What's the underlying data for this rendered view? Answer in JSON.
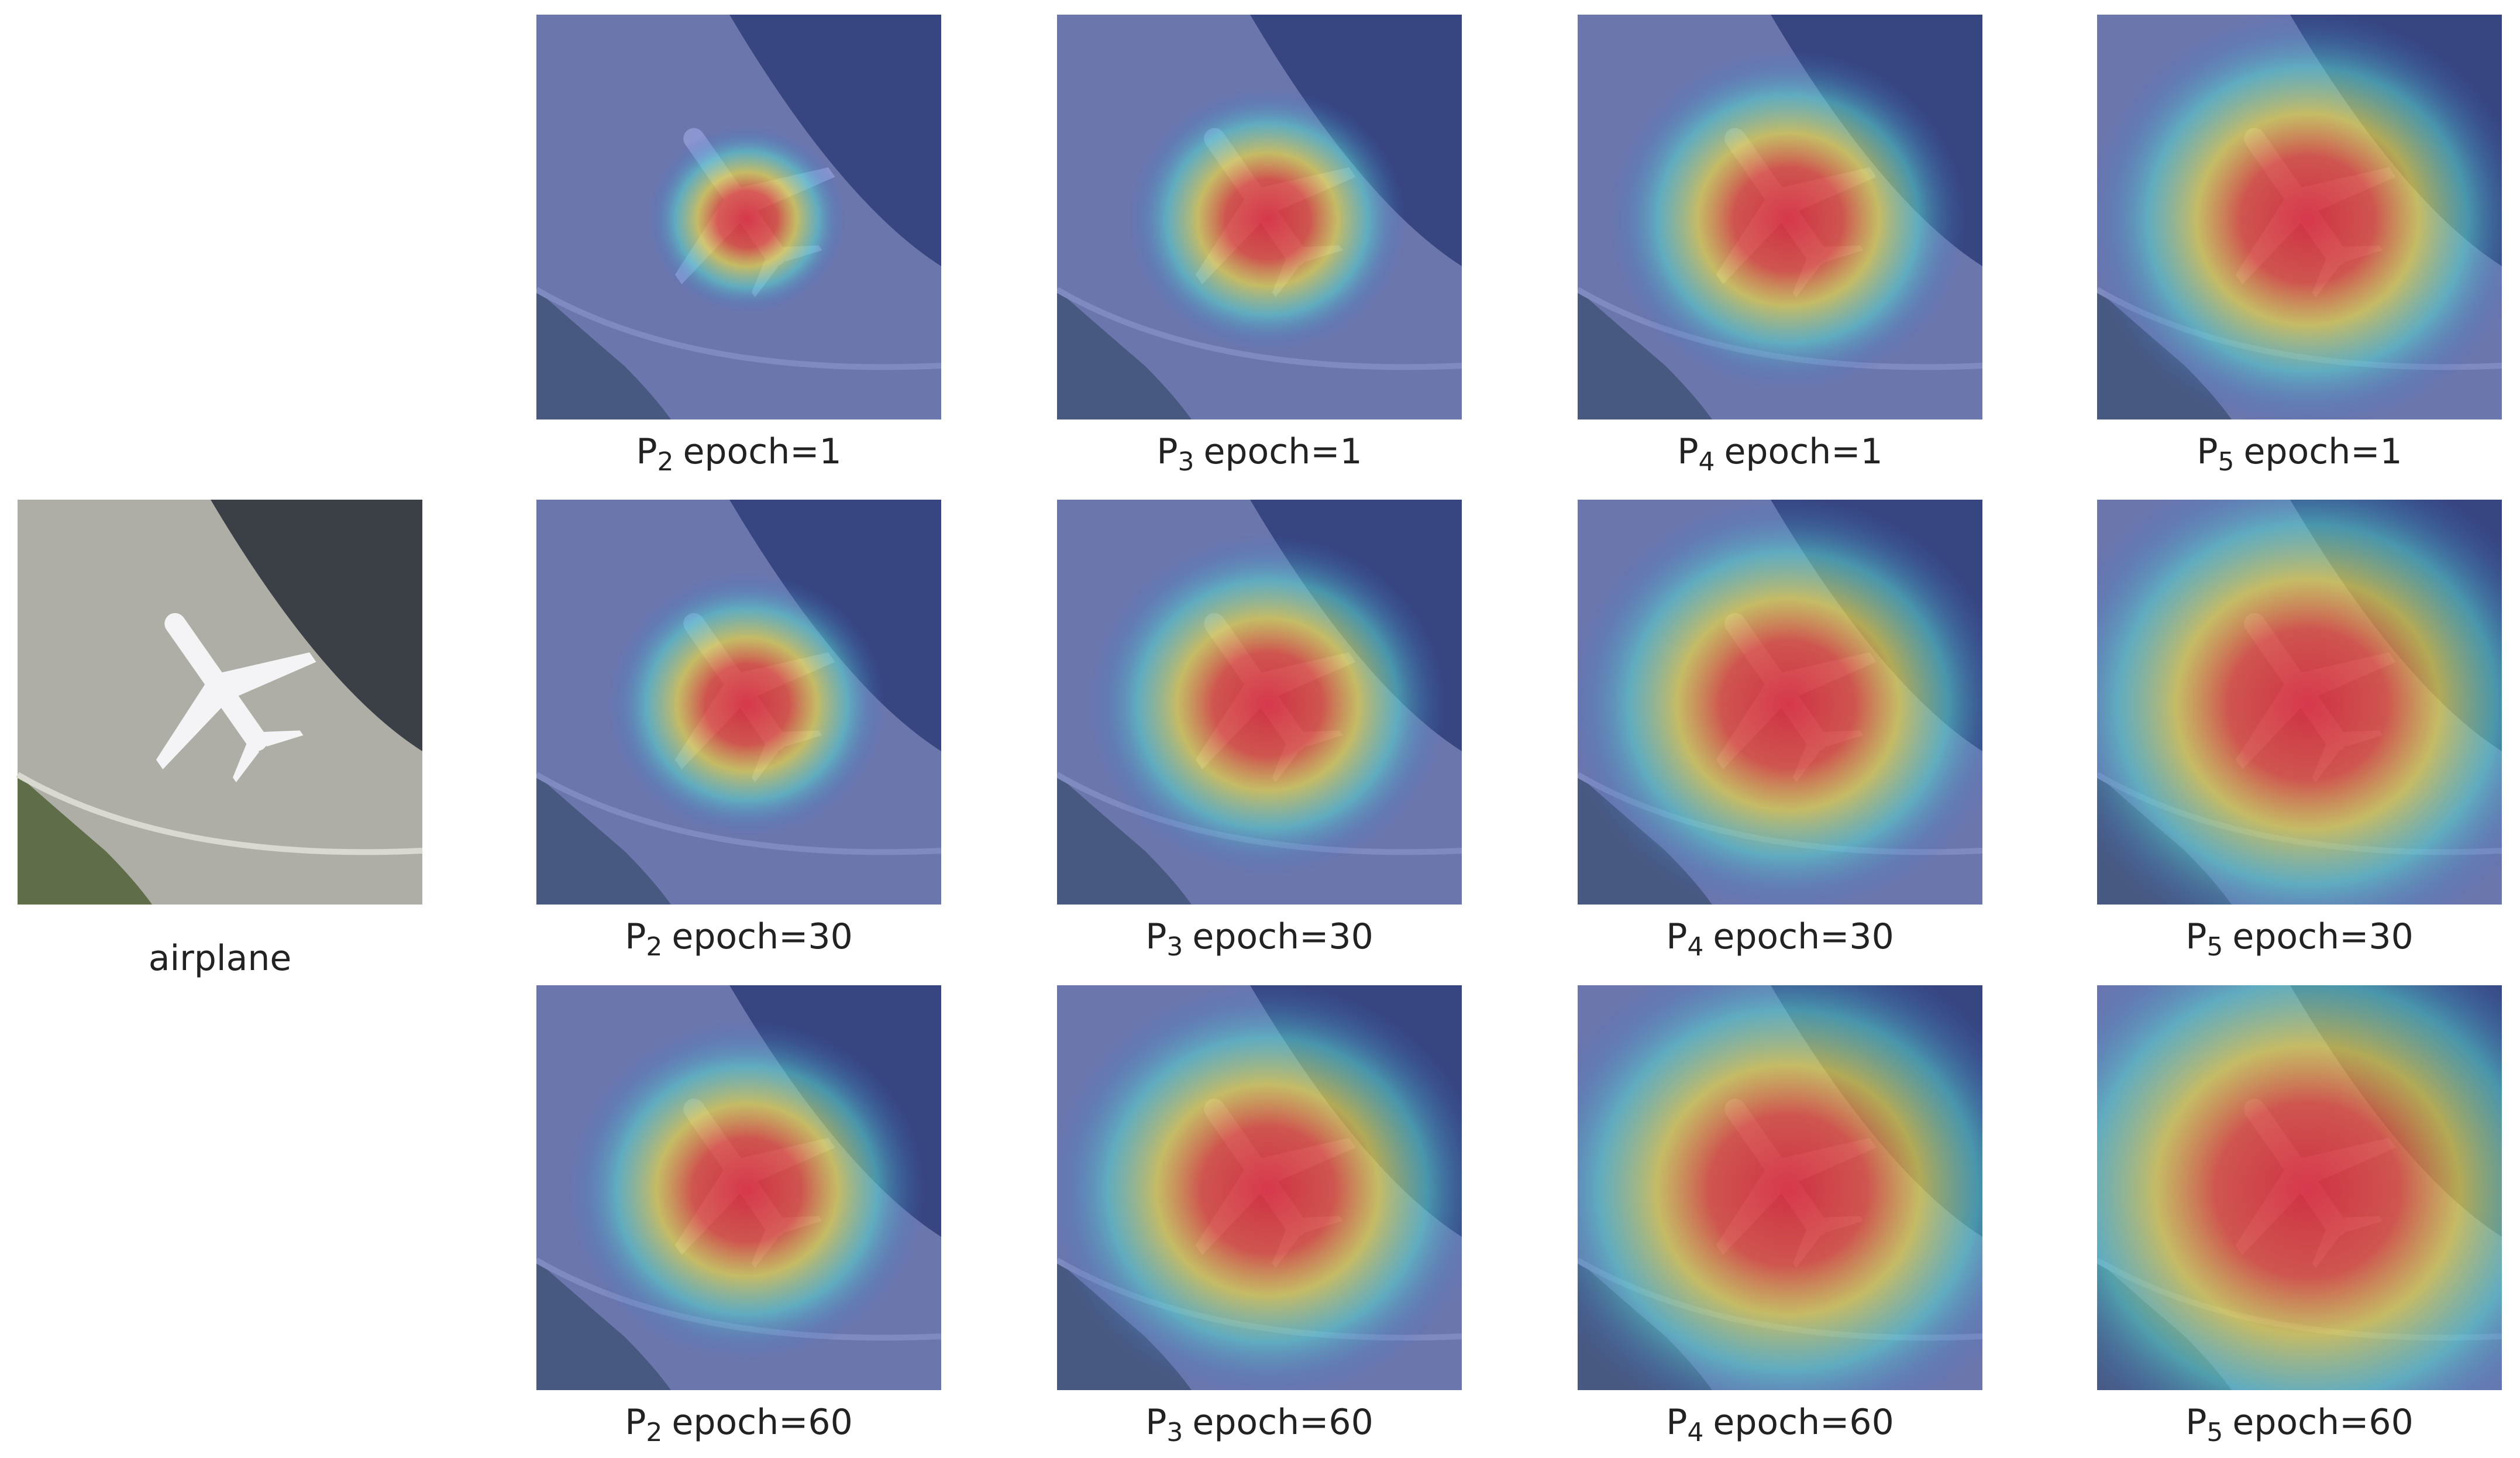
{
  "original": {
    "label": "airplane"
  },
  "grid": {
    "rows": [
      [
        {
          "prefix": "P",
          "subscript": "2",
          "suffix": "epoch=1"
        },
        {
          "prefix": "P",
          "subscript": "3",
          "suffix": "epoch=1"
        },
        {
          "prefix": "P",
          "subscript": "4",
          "suffix": "epoch=1"
        },
        {
          "prefix": "P",
          "subscript": "5",
          "suffix": "epoch=1"
        }
      ],
      [
        {
          "prefix": "P",
          "subscript": "2",
          "suffix": "epoch=30"
        },
        {
          "prefix": "P",
          "subscript": "3",
          "suffix": "epoch=30"
        },
        {
          "prefix": "P",
          "subscript": "4",
          "suffix": "epoch=30"
        },
        {
          "prefix": "P",
          "subscript": "5",
          "suffix": "epoch=30"
        }
      ],
      [
        {
          "prefix": "P",
          "subscript": "2",
          "suffix": "epoch=60"
        },
        {
          "prefix": "P",
          "subscript": "3",
          "suffix": "epoch=60"
        },
        {
          "prefix": "P",
          "subscript": "4",
          "suffix": "epoch=60"
        },
        {
          "prefix": "P",
          "subscript": "5",
          "suffix": "epoch=60"
        }
      ]
    ]
  }
}
